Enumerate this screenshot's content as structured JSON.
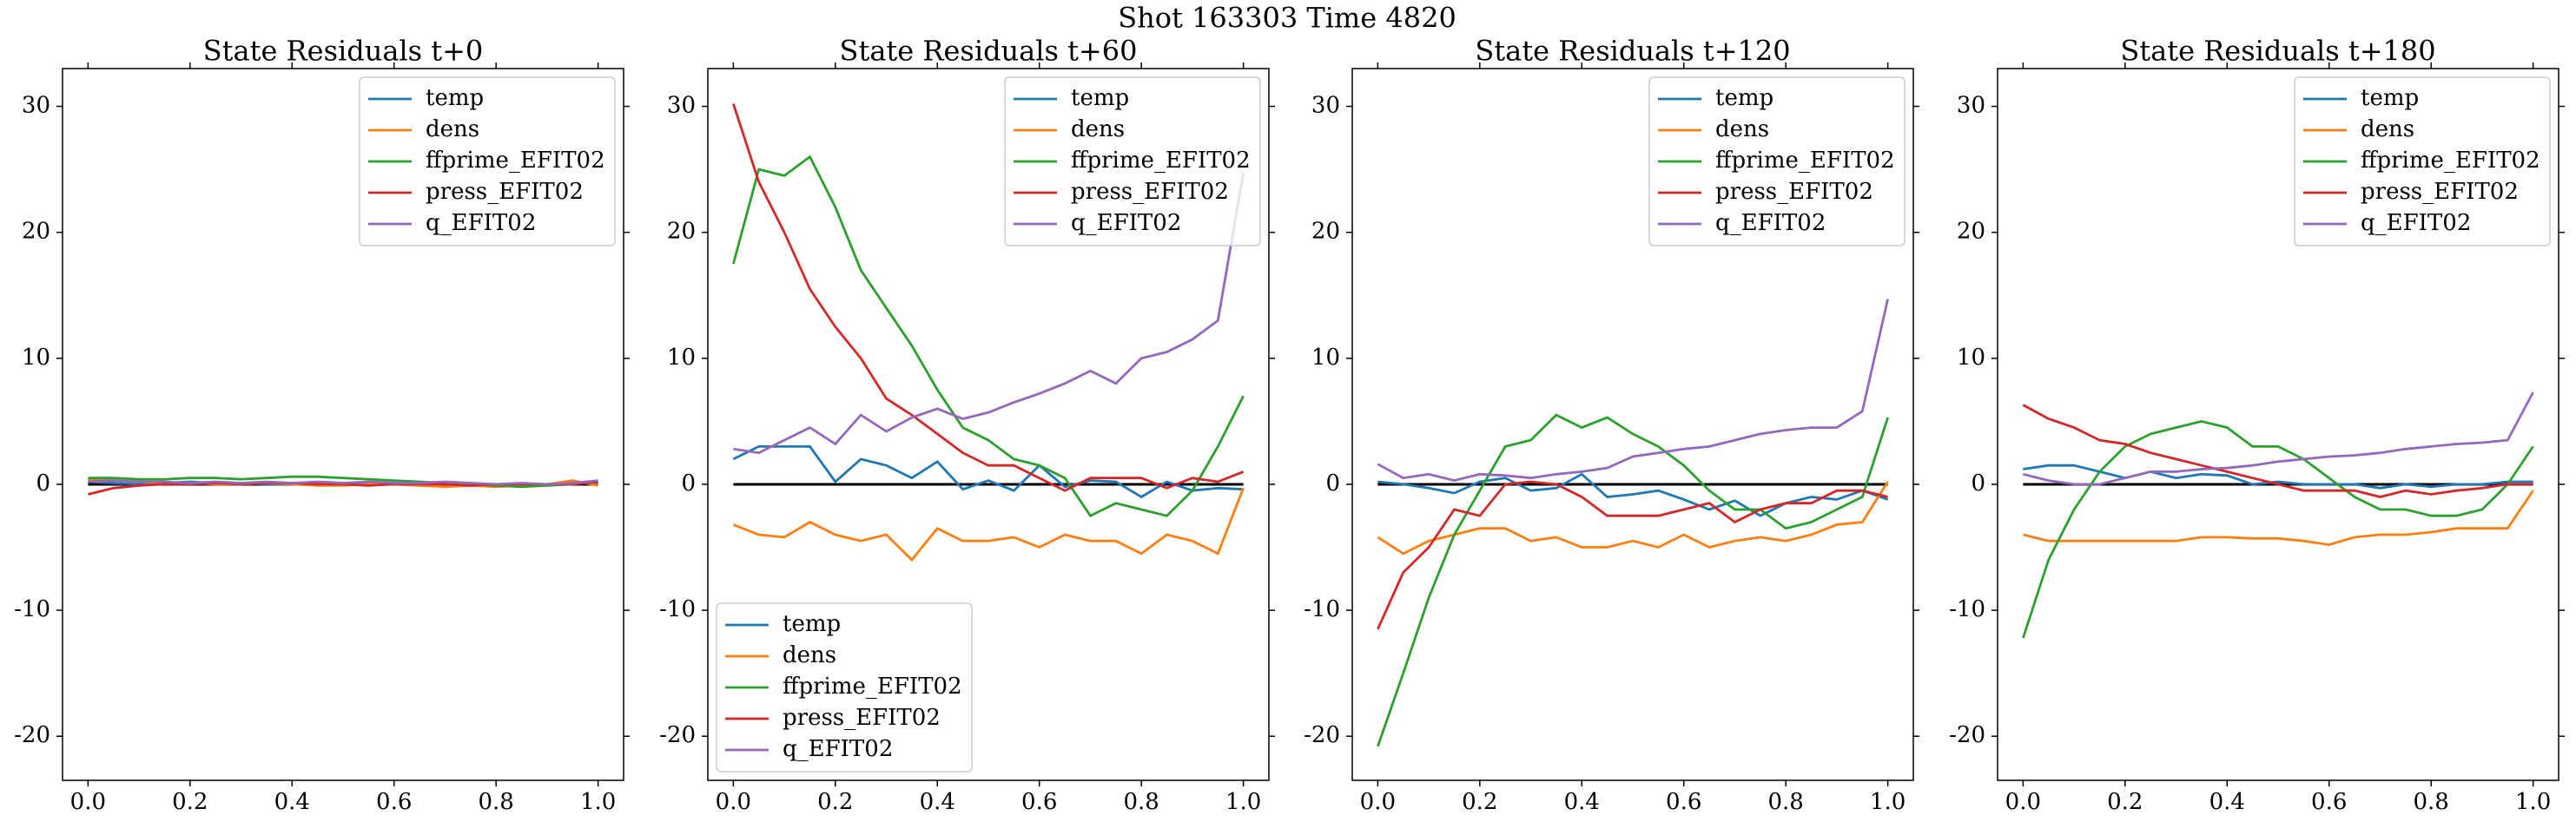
{
  "title": "Shot 163303   Time 4820",
  "chart_data": [
    {
      "type": "line",
      "title": "State Residuals t+0",
      "x": [
        0,
        0.05,
        0.1,
        0.15,
        0.2,
        0.25,
        0.3,
        0.35,
        0.4,
        0.45,
        0.5,
        0.55,
        0.6,
        0.65,
        0.7,
        0.75,
        0.8,
        0.85,
        0.9,
        0.95,
        1.0
      ],
      "series": [
        {
          "name": "temp",
          "color": "#1f77b4",
          "values": [
            0.2,
            0.1,
            0,
            0.1,
            0.2,
            0.1,
            0.1,
            0,
            0,
            0.1,
            0,
            0.1,
            0,
            -0.1,
            0,
            0,
            -0.1,
            0,
            0,
            0.1,
            0.1
          ]
        },
        {
          "name": "dens",
          "color": "#ff7f0e",
          "values": [
            0.4,
            0.3,
            0.2,
            0.1,
            0.1,
            0,
            0,
            0.1,
            0,
            -0.1,
            -0.1,
            0,
            0,
            -0.1,
            -0.2,
            -0.1,
            -0.2,
            -0.1,
            0,
            0.3,
            -0.1
          ]
        },
        {
          "name": "ffprime_EFIT02",
          "color": "#2ca02c",
          "values": [
            0.5,
            0.5,
            0.4,
            0.4,
            0.5,
            0.5,
            0.4,
            0.5,
            0.6,
            0.6,
            0.5,
            0.4,
            0.3,
            0.2,
            0.1,
            0,
            -0.1,
            -0.2,
            -0.1,
            0,
            0.2
          ]
        },
        {
          "name": "press_EFIT02",
          "color": "#d62728",
          "values": [
            -0.8,
            -0.3,
            -0.1,
            0,
            0,
            0.1,
            0,
            0.1,
            0.1,
            0,
            0,
            -0.1,
            0,
            0,
            0,
            -0.1,
            0,
            0,
            0,
            0,
            0.2
          ]
        },
        {
          "name": "q_EFIT02",
          "color": "#9467bd",
          "values": [
            0.2,
            0.3,
            0.2,
            0.2,
            0.1,
            0.2,
            0.1,
            0.2,
            0.1,
            0.2,
            0.1,
            0.2,
            0.1,
            0.1,
            0.2,
            0.1,
            0,
            0.1,
            0,
            0.1,
            0.3
          ]
        }
      ],
      "hline": 0,
      "legend": [
        "upper right"
      ],
      "xlim": [
        -0.05,
        1.05
      ],
      "xticks": [
        {
          "value": 0,
          "label": "0.0"
        },
        0.2,
        0.4,
        0.6,
        0.8,
        {
          "value": 1,
          "label": "1.0"
        }
      ],
      "ylim": [
        -23.5,
        33
      ],
      "yticks": [
        -20,
        -10,
        0,
        10,
        20,
        30
      ]
    },
    {
      "type": "line",
      "title": "State Residuals t+60",
      "x": [
        0,
        0.05,
        0.1,
        0.15,
        0.2,
        0.25,
        0.3,
        0.35,
        0.4,
        0.45,
        0.5,
        0.55,
        0.6,
        0.65,
        0.7,
        0.75,
        0.8,
        0.85,
        0.9,
        0.95,
        1.0
      ],
      "series": [
        {
          "name": "temp",
          "color": "#1f77b4",
          "values": [
            2,
            3,
            3,
            3,
            0.2,
            2,
            1.5,
            0.5,
            1.8,
            -0.4,
            0.3,
            -0.5,
            1.5,
            -0.2,
            0.3,
            0.2,
            -1,
            0.2,
            -0.5,
            -0.3,
            -0.4
          ]
        },
        {
          "name": "dens",
          "color": "#ff7f0e",
          "values": [
            -3.2,
            -4,
            -4.2,
            -3,
            -4,
            -4.5,
            -4,
            -6,
            -3.5,
            -4.5,
            -4.5,
            -4.2,
            -5,
            -4,
            -4.5,
            -4.5,
            -5.5,
            -4,
            -4.5,
            -5.5,
            -0.3
          ]
        },
        {
          "name": "ffprime_EFIT02",
          "color": "#2ca02c",
          "values": [
            17.5,
            25,
            24.5,
            26,
            22,
            17,
            14,
            11,
            7.5,
            4.5,
            3.5,
            2,
            1.5,
            0.5,
            -2.5,
            -1.5,
            -2,
            -2.5,
            -0.5,
            3,
            7
          ]
        },
        {
          "name": "press_EFIT02",
          "color": "#d62728",
          "values": [
            30.2,
            24,
            20,
            15.5,
            12.5,
            10,
            6.8,
            5.5,
            4,
            2.5,
            1.5,
            1.5,
            0.5,
            -0.5,
            0.5,
            0.5,
            0.5,
            -0.3,
            0.5,
            0.2,
            1
          ]
        },
        {
          "name": "q_EFIT02",
          "color": "#9467bd",
          "values": [
            2.8,
            2.5,
            3.5,
            4.5,
            3.2,
            5.5,
            4.2,
            5.3,
            6,
            5.2,
            5.7,
            6.5,
            7.2,
            8,
            9,
            8,
            10,
            10.5,
            11.5,
            13,
            24.7
          ]
        }
      ],
      "hline": 0,
      "legend": [
        "upper right",
        "lower left"
      ],
      "xlim": [
        -0.05,
        1.05
      ],
      "xticks": [
        {
          "value": 0,
          "label": "0.0"
        },
        0.2,
        0.4,
        0.6,
        0.8,
        {
          "value": 1,
          "label": "1.0"
        }
      ],
      "ylim": [
        -23.5,
        33
      ],
      "yticks": [
        -20,
        -10,
        0,
        10,
        20,
        30
      ]
    },
    {
      "type": "line",
      "title": "State Residuals t+120",
      "x": [
        0,
        0.05,
        0.1,
        0.15,
        0.2,
        0.25,
        0.3,
        0.35,
        0.4,
        0.45,
        0.5,
        0.55,
        0.6,
        0.65,
        0.7,
        0.75,
        0.8,
        0.85,
        0.9,
        0.95,
        1.0
      ],
      "series": [
        {
          "name": "temp",
          "color": "#1f77b4",
          "values": [
            0.2,
            0,
            -0.3,
            -0.7,
            0.2,
            0.5,
            -0.5,
            -0.3,
            0.8,
            -1,
            -0.8,
            -0.5,
            -1.2,
            -2,
            -1.3,
            -2.5,
            -1.5,
            -1,
            -1.2,
            -0.5,
            -1.2
          ]
        },
        {
          "name": "dens",
          "color": "#ff7f0e",
          "values": [
            -4.2,
            -5.5,
            -4.5,
            -4,
            -3.5,
            -3.5,
            -4.5,
            -4.2,
            -5,
            -5,
            -4.5,
            -5,
            -4,
            -5,
            -4.5,
            -4.2,
            -4.5,
            -4,
            -3.2,
            -3,
            0.2
          ]
        },
        {
          "name": "ffprime_EFIT02",
          "color": "#2ca02c",
          "values": [
            -20.8,
            -15,
            -9,
            -4,
            -0.5,
            3,
            3.5,
            5.5,
            4.5,
            5.3,
            4,
            3,
            1.5,
            -0.5,
            -2,
            -2,
            -3.5,
            -3,
            -2,
            -1,
            5.3
          ]
        },
        {
          "name": "press_EFIT02",
          "color": "#d62728",
          "values": [
            -11.5,
            -7,
            -5,
            -2,
            -2.5,
            0,
            0.2,
            0,
            -1,
            -2.5,
            -2.5,
            -2.5,
            -2,
            -1.5,
            -3,
            -2,
            -1.5,
            -1.5,
            -0.5,
            -0.5,
            -1
          ]
        },
        {
          "name": "q_EFIT02",
          "color": "#9467bd",
          "values": [
            1.6,
            0.5,
            0.8,
            0.3,
            0.8,
            0.7,
            0.5,
            0.8,
            1,
            1.3,
            2.2,
            2.5,
            2.8,
            3,
            3.5,
            4,
            4.3,
            4.5,
            4.5,
            5.8,
            14.7
          ]
        }
      ],
      "hline": 0,
      "legend": [
        "upper right"
      ],
      "xlim": [
        -0.05,
        1.05
      ],
      "xticks": [
        {
          "value": 0,
          "label": "0.0"
        },
        0.2,
        0.4,
        0.6,
        0.8,
        {
          "value": 1,
          "label": "1.0"
        }
      ],
      "ylim": [
        -23.5,
        33
      ],
      "yticks": [
        -20,
        -10,
        0,
        10,
        20,
        30
      ]
    },
    {
      "type": "line",
      "title": "State Residuals t+180",
      "x": [
        0,
        0.05,
        0.1,
        0.15,
        0.2,
        0.25,
        0.3,
        0.35,
        0.4,
        0.45,
        0.5,
        0.55,
        0.6,
        0.65,
        0.7,
        0.75,
        0.8,
        0.85,
        0.9,
        0.95,
        1.0
      ],
      "series": [
        {
          "name": "temp",
          "color": "#1f77b4",
          "values": [
            1.2,
            1.5,
            1.5,
            1,
            0.5,
            1,
            0.5,
            0.8,
            0.7,
            0,
            0.2,
            0,
            0,
            0,
            -0.3,
            0,
            -0.2,
            0,
            0,
            0.2,
            0.2
          ]
        },
        {
          "name": "dens",
          "color": "#ff7f0e",
          "values": [
            -4,
            -4.5,
            -4.5,
            -4.5,
            -4.5,
            -4.5,
            -4.5,
            -4.2,
            -4.2,
            -4.3,
            -4.3,
            -4.5,
            -4.8,
            -4.2,
            -4,
            -4,
            -3.8,
            -3.5,
            -3.5,
            -3.5,
            -0.5
          ]
        },
        {
          "name": "ffprime_EFIT02",
          "color": "#2ca02c",
          "values": [
            -12.2,
            -6,
            -2,
            1,
            3,
            4,
            4.5,
            5,
            4.5,
            3,
            3,
            2,
            0.5,
            -1,
            -2,
            -2,
            -2.5,
            -2.5,
            -2,
            0,
            3
          ]
        },
        {
          "name": "press_EFIT02",
          "color": "#d62728",
          "values": [
            6.3,
            5.2,
            4.5,
            3.5,
            3.2,
            2.5,
            2,
            1.5,
            1,
            0.5,
            0,
            -0.5,
            -0.5,
            -0.5,
            -1,
            -0.5,
            -0.8,
            -0.5,
            -0.3,
            0,
            0
          ]
        },
        {
          "name": "q_EFIT02",
          "color": "#9467bd",
          "values": [
            0.8,
            0.3,
            0,
            0,
            0.5,
            1,
            1,
            1.2,
            1.3,
            1.5,
            1.8,
            2,
            2.2,
            2.3,
            2.5,
            2.8,
            3,
            3.2,
            3.3,
            3.5,
            7.3
          ]
        }
      ],
      "hline": 0,
      "legend": [
        "upper right"
      ],
      "xlim": [
        -0.05,
        1.05
      ],
      "xticks": [
        {
          "value": 0,
          "label": "0.0"
        },
        0.2,
        0.4,
        0.6,
        0.8,
        {
          "value": 1,
          "label": "1.0"
        }
      ],
      "ylim": [
        -23.5,
        33
      ],
      "yticks": [
        -20,
        -10,
        0,
        10,
        20,
        30
      ]
    }
  ]
}
